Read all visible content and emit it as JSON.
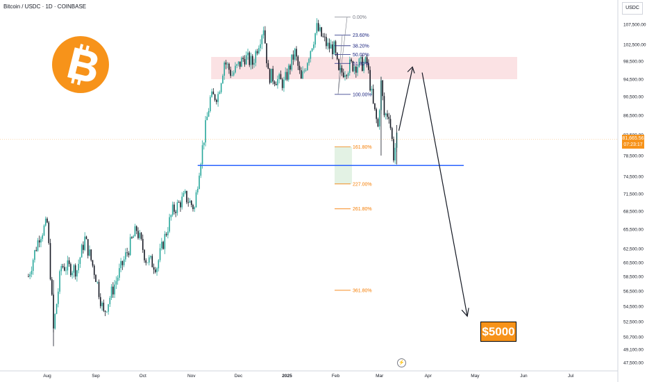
{
  "header": {
    "symbol": "Bitcoin / USDC · 1D · COINBASE"
  },
  "logo": {
    "icon": "bitcoin-logo-icon",
    "glyph": "₿",
    "color": "#f7931a"
  },
  "annotation": {
    "label": "$5000",
    "color": "#f7931a"
  },
  "price_axis": {
    "unit": "USDC",
    "current_price": "81,665.56",
    "countdown": "07:23:17",
    "tag_color": "#f7931a"
  },
  "lightning_icon": "lightning-icon",
  "colors": {
    "up": "#26a69a",
    "down": "#131722",
    "support": "#2962ff",
    "zone": "#f7c5c9",
    "fib": "#1a237e",
    "extension": "#f57c00"
  },
  "chart_data": {
    "type": "candlestick",
    "title": "Bitcoin / USDC · 1D · COINBASE",
    "x_ticks": [
      "Aug",
      "Sep",
      "Oct",
      "Nov",
      "Dec",
      "2025",
      "Feb",
      "Mar",
      "Apr",
      "May",
      "Jun",
      "Jul"
    ],
    "y_ticks": [
      47500,
      49100,
      50700,
      52500,
      54500,
      56500,
      58500,
      60500,
      62500,
      65500,
      68500,
      71500,
      74500,
      78500,
      82500,
      86500,
      90500,
      94500,
      98500,
      102500,
      107500
    ],
    "y_tick_labels": [
      "47,500.00",
      "49,100.00",
      "50,700.00",
      "52,500.00",
      "54,500.00",
      "56,500.00",
      "58,500.00",
      "60,500.00",
      "62,500.00",
      "65,500.00",
      "68,500.00",
      "71,500.00",
      "74,500.00",
      "78,500.00",
      "82,500.00",
      "86,500.00",
      "90,500.00",
      "94,500.00",
      "98,500.00",
      "102,500.00",
      "107,500.00"
    ],
    "price_path": [
      [
        "Jul 20",
        58500
      ],
      [
        "Jul 27",
        64500
      ],
      [
        "Aug 1",
        66500
      ],
      [
        "Aug 5",
        51500
      ],
      [
        "Aug 10",
        60000
      ],
      [
        "Aug 20",
        59500
      ],
      [
        "Aug 25",
        64000
      ],
      [
        "Sep 1",
        58500
      ],
      [
        "Sep 6",
        53500
      ],
      [
        "Sep 15",
        58500
      ],
      [
        "Sep 27",
        65500
      ],
      [
        "Oct 3",
        61000
      ],
      [
        "Oct 10",
        60000
      ],
      [
        "Oct 20",
        68500
      ],
      [
        "Oct 28",
        71000
      ],
      [
        "Nov 3",
        69000
      ],
      [
        "Nov 6",
        76000
      ],
      [
        "Nov 13",
        90000
      ],
      [
        "Nov 18",
        91000
      ],
      [
        "Nov 22",
        98500
      ],
      [
        "Nov 27",
        95500
      ],
      [
        "Dec 5",
        99500
      ],
      [
        "Dec 10",
        98000
      ],
      [
        "Dec 17",
        107000
      ],
      [
        "Dec 20",
        95500
      ],
      [
        "Dec 30",
        93500
      ],
      [
        "Jan 6",
        100500
      ],
      [
        "Jan 10",
        94000
      ],
      [
        "Jan 20",
        106500
      ],
      [
        "Jan 27",
        102000
      ],
      [
        "Jan 31",
        101500
      ],
      [
        "Feb 3",
        95500
      ],
      [
        "Feb 10",
        97500
      ],
      [
        "Feb 21",
        98000
      ],
      [
        "Feb 25",
        88500
      ],
      [
        "Feb 28",
        84000
      ],
      [
        "Mar 2",
        93500
      ],
      [
        "Mar 4",
        86500
      ],
      [
        "Mar 7",
        87000
      ],
      [
        "Mar 10",
        78500
      ],
      [
        "Mar 12",
        81665
      ]
    ],
    "support_level": 76600,
    "resistance_zone": [
      94500,
      99500
    ],
    "fibonacci_retracement": [
      {
        "label": "0.00%",
        "price": 109300
      },
      {
        "label": "23.60%",
        "price": 104800
      },
      {
        "label": "38.20%",
        "price": 102200
      },
      {
        "label": "50.00%",
        "price": 100100
      },
      {
        "label": "61.80%",
        "price": 98000
      },
      {
        "label": "100.00%",
        "price": 91000
      }
    ],
    "fibonacci_extension": [
      {
        "label": "161.80%",
        "price": 80200
      },
      {
        "label": "227.00%",
        "price": 73200
      },
      {
        "label": "261.80%",
        "price": 68900
      },
      {
        "label": "361.80%",
        "price": 56600
      }
    ],
    "projection_path": [
      [
        "Mar 12",
        81665
      ],
      [
        "Mar 22",
        97500
      ],
      [
        "Apr 26",
        53200
      ]
    ],
    "grid": false,
    "legend": "none"
  }
}
